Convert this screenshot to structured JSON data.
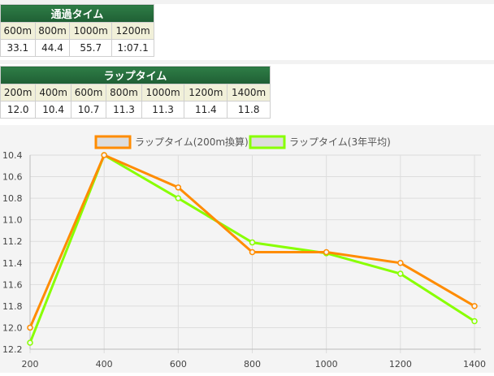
{
  "passing": {
    "title": "通過タイム",
    "headers": [
      "600m",
      "800m",
      "1000m",
      "1200m"
    ],
    "values": [
      "33.1",
      "44.4",
      "55.7",
      "1:07.1"
    ]
  },
  "lap": {
    "title": "ラップタイム",
    "headers": [
      "200m",
      "400m",
      "600m",
      "800m",
      "1000m",
      "1200m",
      "1400m"
    ],
    "values": [
      "12.0",
      "10.4",
      "10.7",
      "11.3",
      "11.3",
      "11.4",
      "11.8"
    ]
  },
  "chart_data": {
    "type": "line",
    "x": [
      200,
      400,
      600,
      800,
      1000,
      1200,
      1400
    ],
    "series": [
      {
        "name": "ラップタイム(200m換算)",
        "color": "#ff8c00",
        "values": [
          12.0,
          10.4,
          10.7,
          11.3,
          11.3,
          11.4,
          11.8
        ]
      },
      {
        "name": "ラップタイム(3年平均)",
        "color": "#88ff00",
        "values": [
          12.14,
          10.4,
          10.8,
          11.21,
          11.31,
          11.5,
          11.94
        ]
      }
    ],
    "ylim": [
      10.4,
      12.2
    ],
    "y_inverted": true,
    "y_ticks": [
      "10.4",
      "10.6",
      "10.8",
      "11.0",
      "11.2",
      "11.4",
      "11.6",
      "11.8",
      "12.0",
      "12.2"
    ],
    "x_ticks": [
      "200",
      "400",
      "600",
      "800",
      "1000",
      "1200",
      "1400"
    ],
    "grid": true,
    "legend_position": "top"
  }
}
